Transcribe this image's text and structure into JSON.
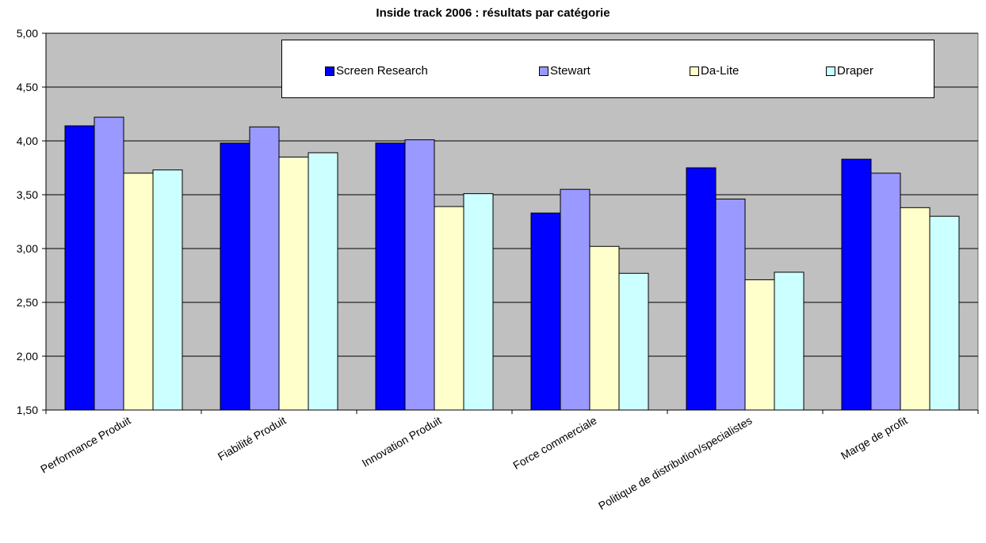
{
  "chart_data": {
    "type": "bar",
    "title": "Inside track 2006 : résultats par catégorie",
    "categories": [
      "Performance Produit",
      "Fiabilité Produit",
      "Innovation Produit",
      "Force commerciale",
      "Politique de distribution/specialistes",
      "Marge de profit"
    ],
    "series": [
      {
        "name": "Screen Research",
        "color": "#0000ff",
        "values": [
          4.14,
          3.98,
          3.98,
          3.33,
          3.75,
          3.83
        ]
      },
      {
        "name": "Stewart",
        "color": "#9999ff",
        "values": [
          4.22,
          4.13,
          4.01,
          3.55,
          3.46,
          3.7
        ]
      },
      {
        "name": "Da-Lite",
        "color": "#ffffcc",
        "values": [
          3.7,
          3.85,
          3.39,
          3.02,
          2.71,
          3.38
        ]
      },
      {
        "name": "Draper",
        "color": "#ccffff",
        "values": [
          3.73,
          3.89,
          3.51,
          2.77,
          2.78,
          3.3
        ]
      }
    ],
    "yticks": [
      "1,50",
      "2,00",
      "2,50",
      "3,00",
      "3,50",
      "4,00",
      "4,50",
      "5,00"
    ],
    "ylim": [
      1.5,
      5.0
    ],
    "grid": true,
    "plot_background": "#c0c0c0",
    "legend_position": "top"
  }
}
